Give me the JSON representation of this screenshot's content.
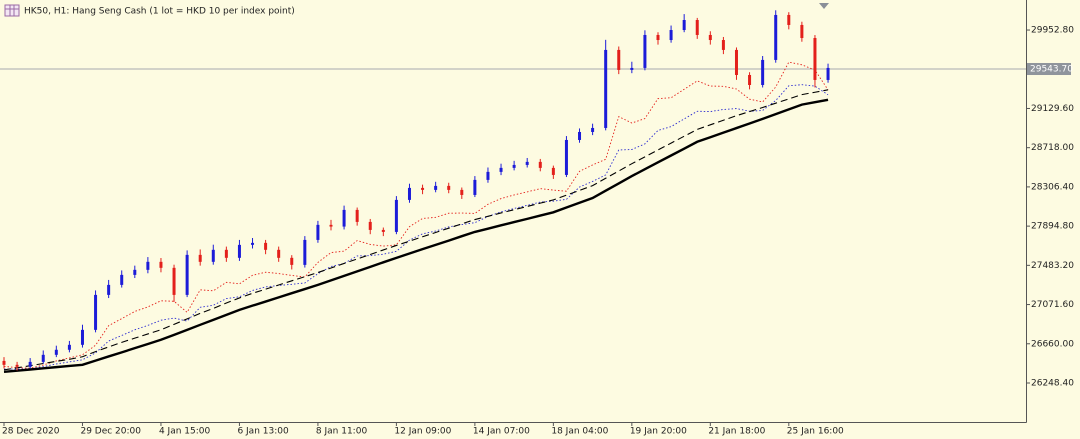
{
  "chart_data": {
    "type": "candlestick",
    "title": "HK50, H1:  Hang Seng Cash (1 lot = HKD 10 per index point)",
    "categories": [
      "28 Dec 2020",
      null,
      null,
      null,
      null,
      null,
      "29 Dec 20:00",
      null,
      null,
      null,
      null,
      null,
      "4 Jan 15:00",
      null,
      null,
      null,
      null,
      null,
      "6 Jan 13:00",
      null,
      null,
      null,
      null,
      null,
      "8 Jan 11:00",
      null,
      null,
      null,
      null,
      null,
      "12 Jan 09:00",
      null,
      null,
      null,
      null,
      null,
      "14 Jan 07:00",
      null,
      null,
      null,
      null,
      null,
      "18 Jan 04:00",
      null,
      null,
      null,
      null,
      null,
      "19 Jan 20:00",
      null,
      null,
      null,
      null,
      null,
      "21 Jan 18:00",
      null,
      null,
      null,
      null,
      null,
      "25 Jan 16:00",
      null,
      null,
      null
    ],
    "open": [
      26480,
      26439,
      26418,
      26470,
      26544,
      26597,
      26649,
      26806,
      27173,
      27278,
      27383,
      27436,
      27520,
      27457,
      27173,
      27593,
      27520,
      27646,
      27562,
      27698,
      27719,
      27646,
      27562,
      27488,
      27750,
      27908,
      27890,
      28065,
      27939,
      27855,
      27834,
      28170,
      28296,
      28275,
      28317,
      28275,
      28222,
      28380,
      28464,
      28506,
      28537,
      28569,
      28506,
      28432,
      28799,
      28883,
      28925,
      29744,
      29534,
      29555,
      29901,
      29848,
      29953,
      30058,
      29901,
      29848,
      29744,
      29481,
      29376,
      29639,
      30111,
      30006,
      29869,
      29429
    ],
    "high": [
      26520,
      26470,
      26510,
      26590,
      26640,
      26690,
      26860,
      27220,
      27330,
      27430,
      27480,
      27570,
      27560,
      27490,
      27640,
      27650,
      27700,
      27680,
      27750,
      27770,
      27750,
      27680,
      27590,
      27790,
      27950,
      27960,
      28110,
      28090,
      27970,
      27880,
      28210,
      28340,
      28330,
      28360,
      28350,
      28300,
      28420,
      28510,
      28550,
      28580,
      28610,
      28600,
      28530,
      28840,
      28920,
      28970,
      29850,
      29780,
      29620,
      29950,
      29930,
      30000,
      30120,
      30080,
      29940,
      29880,
      29770,
      29510,
      29680,
      30160,
      30140,
      30040,
      29900,
      29600
    ],
    "low": [
      26400,
      26380,
      26400,
      26450,
      26520,
      26570,
      26620,
      26780,
      27140,
      27250,
      27350,
      27400,
      27410,
      27100,
      27150,
      27480,
      27490,
      27520,
      27530,
      27660,
      27600,
      27520,
      27440,
      27460,
      27720,
      27850,
      27860,
      27900,
      27810,
      27790,
      27810,
      28140,
      28230,
      28250,
      28240,
      28180,
      28200,
      28350,
      28430,
      28480,
      28510,
      28470,
      28390,
      28410,
      28770,
      28850,
      28900,
      29490,
      29500,
      29530,
      29800,
      29820,
      29930,
      29860,
      29800,
      29700,
      29430,
      29330,
      29350,
      29610,
      29960,
      29830,
      29350,
      29400
    ],
    "close": [
      26439,
      26418,
      26470,
      26544,
      26597,
      26649,
      26806,
      27173,
      27278,
      27383,
      27436,
      27520,
      27457,
      27173,
      27593,
      27520,
      27646,
      27562,
      27698,
      27719,
      27646,
      27562,
      27488,
      27750,
      27908,
      27890,
      28065,
      27939,
      27855,
      27834,
      28170,
      28296,
      28275,
      28317,
      28275,
      28222,
      28380,
      28464,
      28506,
      28537,
      28569,
      28506,
      28432,
      28799,
      28883,
      28925,
      29744,
      29534,
      29555,
      29901,
      29848,
      29953,
      30058,
      29901,
      29848,
      29744,
      29481,
      29376,
      29639,
      30111,
      30006,
      29869,
      29429,
      29555
    ],
    "up_color": "#1c1cd8",
    "down_color": "#e3201b",
    "series": [
      {
        "color": "#e3201b",
        "style": "dotted",
        "values": [
          26423,
          26409,
          26404,
          26437,
          26480,
          26512,
          26544,
          26645,
          26850,
          26924,
          26999,
          27047,
          27111,
          27106,
          26990,
          27226,
          27216,
          27305,
          27289,
          27379,
          27411,
          27397,
          27377,
          27361,
          27514,
          27617,
          27632,
          27743,
          27703,
          27685,
          27698,
          27889,
          27975,
          27987,
          28030,
          28032,
          28028,
          28124,
          28184,
          28222,
          28254,
          28288,
          28273,
          28261,
          28470,
          28537,
          28596,
          29044,
          28977,
          29024,
          29233,
          29242,
          29331,
          29419,
          29365,
          29362,
          29334,
          29227,
          29198,
          29355,
          29616,
          29588,
          29532,
          29325
        ]
      },
      {
        "color": "#2a2ad0",
        "style": "dotted",
        "values": [
          26395,
          26394,
          26397,
          26420,
          26448,
          26470,
          26492,
          26564,
          26689,
          26747,
          26807,
          26853,
          26907,
          26930,
          26898,
          27043,
          27064,
          27134,
          27153,
          27220,
          27257,
          27272,
          27284,
          27298,
          27396,
          27471,
          27503,
          27582,
          27585,
          27600,
          27630,
          27748,
          27814,
          27843,
          27887,
          27911,
          27931,
          27996,
          28044,
          28080,
          28113,
          28147,
          28157,
          28176,
          28305,
          28364,
          28432,
          28694,
          28699,
          28758,
          28899,
          28939,
          29020,
          29100,
          29097,
          29119,
          29129,
          29100,
          29109,
          29213,
          29368,
          29379,
          29364,
          29273
        ]
      },
      {
        "color": "#000000",
        "style": "dashed",
        "values": [
          26386,
          26408,
          26430,
          26453,
          26475,
          26497,
          26524,
          26578,
          26627,
          26675,
          26719,
          26763,
          26807,
          26864,
          26921,
          26979,
          27031,
          27088,
          27141,
          27190,
          27233,
          27277,
          27321,
          27364,
          27408,
          27455,
          27503,
          27550,
          27597,
          27645,
          27692,
          27737,
          27783,
          27828,
          27873,
          27919,
          27964,
          27998,
          28033,
          28067,
          28101,
          28136,
          28170,
          28220,
          28270,
          28320,
          28397,
          28473,
          28550,
          28622,
          28694,
          28766,
          28838,
          28910,
          28958,
          29006,
          29054,
          29097,
          29140,
          29185,
          29230,
          29275,
          29300,
          29325
        ]
      },
      {
        "color": "#000000",
        "style": "solid",
        "values": [
          26366,
          26378,
          26390,
          26403,
          26415,
          26427,
          26439,
          26483,
          26527,
          26570,
          26614,
          26658,
          26702,
          26754,
          26806,
          26859,
          26911,
          26963,
          27016,
          27060,
          27103,
          27147,
          27191,
          27234,
          27278,
          27325,
          27373,
          27420,
          27467,
          27515,
          27562,
          27607,
          27653,
          27698,
          27743,
          27789,
          27834,
          27868,
          27903,
          27937,
          27971,
          28006,
          28040,
          28090,
          28140,
          28190,
          28267,
          28343,
          28420,
          28492,
          28564,
          28636,
          28708,
          28780,
          28828,
          28876,
          28924,
          28972,
          29020,
          29070,
          29120,
          29170,
          29195,
          29220
        ]
      }
    ],
    "ylim": [
      25839,
      30268
    ],
    "yticks": [
      {
        "value": 26248.4,
        "label": "26248.40"
      },
      {
        "value": 26660,
        "label": "26660.00"
      },
      {
        "value": 27071.6,
        "label": "27071.60"
      },
      {
        "value": 27483.2,
        "label": "27483.20"
      },
      {
        "value": 27894.8,
        "label": "27894.80"
      },
      {
        "value": 28306.4,
        "label": "28306.40"
      },
      {
        "value": 28718,
        "label": "28718.00"
      },
      {
        "value": 29129.6,
        "label": "29129.60"
      },
      {
        "value": 29952.8,
        "label": "29952.80"
      }
    ],
    "current_price": {
      "value": 29543.7,
      "label": "29543.70"
    }
  }
}
